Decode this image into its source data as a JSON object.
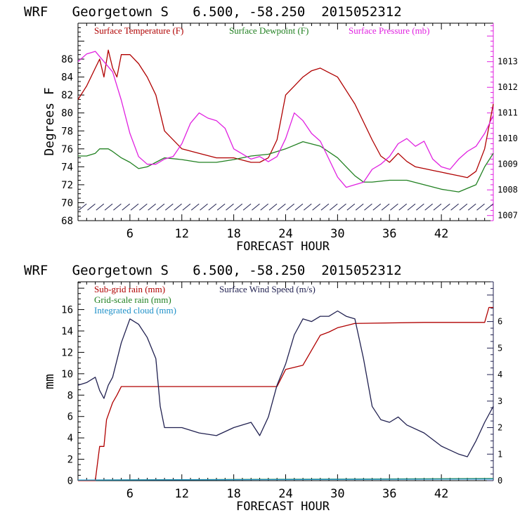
{
  "chart_data": [
    {
      "type": "line",
      "title": "WRF   Georgetown S   6.500, -58.250  2015052312",
      "xlabel": "FORECAST HOUR",
      "ylabel": "Degrees F",
      "y2label": "",
      "xlim": [
        0,
        48
      ],
      "ylim": [
        68,
        90
      ],
      "y2lim": [
        1006.8,
        1014.5
      ],
      "xticks": [
        6,
        12,
        18,
        24,
        30,
        36,
        42
      ],
      "yticks": [
        68,
        70,
        72,
        74,
        76,
        78,
        80,
        82,
        84,
        86
      ],
      "y2ticks": [
        1007,
        1008,
        1009,
        1010,
        1011,
        1012,
        1013
      ],
      "grid": false,
      "legend_position": "top",
      "colors": {
        "temperature": "#b00000",
        "dewpoint": "#208020",
        "pressure": "#e020e0",
        "wind": "#202050"
      },
      "series": [
        {
          "name": "Surface Temperature (F)",
          "axis": "left",
          "color": "#b00000",
          "x": [
            0,
            1,
            2,
            2.5,
            3,
            3.5,
            4,
            4.5,
            5,
            5.5,
            6,
            7,
            8,
            9,
            10,
            12,
            14,
            16,
            18,
            20,
            21,
            22,
            23,
            24,
            25,
            26,
            27,
            28,
            29,
            30,
            31,
            32,
            33,
            34,
            35,
            36,
            37,
            38,
            39,
            40,
            41,
            42,
            43,
            44,
            45,
            46,
            47,
            48
          ],
          "y": [
            81.5,
            83,
            85,
            86,
            84,
            87,
            85,
            84,
            86.5,
            86.5,
            86.5,
            85.5,
            84,
            82,
            78,
            76,
            75.5,
            75,
            75,
            74.5,
            74.5,
            75,
            77,
            82,
            83,
            84,
            84.7,
            85,
            84.5,
            84,
            82.5,
            81,
            79,
            77,
            75.2,
            74.5,
            75.5,
            74.6,
            74,
            73.8,
            73.6,
            73.4,
            73.2,
            73,
            72.8,
            73.5,
            76,
            81
          ]
        },
        {
          "name": "Surface Dewpoint (F)",
          "axis": "left",
          "color": "#208020",
          "x": [
            0,
            1,
            2,
            2.5,
            3,
            3.5,
            4,
            5,
            6,
            7,
            8,
            9,
            10,
            12,
            14,
            16,
            18,
            20,
            22,
            24,
            26,
            28,
            30,
            31,
            32,
            33,
            34,
            36,
            38,
            40,
            42,
            44,
            46,
            47,
            48
          ],
          "y": [
            75.2,
            75.2,
            75.5,
            76,
            76,
            76,
            75.7,
            75,
            74.5,
            73.8,
            74,
            74.5,
            75,
            74.8,
            74.5,
            74.5,
            74.8,
            75.2,
            75.4,
            76,
            76.8,
            76.3,
            75,
            74,
            73,
            72.3,
            72.3,
            72.5,
            72.5,
            72,
            71.5,
            71.2,
            72,
            74,
            75.5
          ]
        },
        {
          "name": "Surface Pressure (mb)",
          "axis": "right",
          "color": "#e020e0",
          "x": [
            0,
            1,
            2,
            3,
            4,
            5,
            6,
            7,
            8,
            9,
            10,
            11,
            12,
            13,
            14,
            15,
            16,
            17,
            18,
            19,
            20,
            21,
            22,
            23,
            24,
            25,
            26,
            27,
            28,
            29,
            30,
            31,
            32,
            33,
            34,
            35,
            36,
            37,
            38,
            39,
            40,
            41,
            42,
            43,
            44,
            45,
            46,
            47,
            48
          ],
          "y": [
            1013,
            1013.3,
            1013.4,
            1013,
            1012.6,
            1011.5,
            1010.2,
            1009.3,
            1009,
            1009,
            1009.2,
            1009.3,
            1009.8,
            1010.6,
            1011,
            1010.8,
            1010.7,
            1010.4,
            1009.6,
            1009.4,
            1009.2,
            1009.3,
            1009.1,
            1009.3,
            1010,
            1011,
            1010.7,
            1010.2,
            1009.9,
            1009.2,
            1008.5,
            1008.1,
            1008.2,
            1008.3,
            1008.8,
            1009,
            1009.3,
            1009.8,
            1010,
            1009.7,
            1009.9,
            1009.2,
            1008.9,
            1008.8,
            1009.2,
            1009.5,
            1009.7,
            1010.2,
            1010.9
          ]
        }
      ],
      "wind_barbs_y": 69.4
    },
    {
      "type": "line",
      "title": "WRF   Georgetown S   6.500, -58.250  2015052312",
      "xlabel": "FORECAST HOUR",
      "ylabel": "mm",
      "xlim": [
        0,
        48
      ],
      "ylim": [
        0,
        18.6
      ],
      "y2lim": [
        0,
        7.5
      ],
      "xticks": [
        6,
        12,
        18,
        24,
        30,
        36,
        42
      ],
      "yticks": [
        0,
        2,
        4,
        6,
        8,
        10,
        12,
        14,
        16
      ],
      "y2ticks": [
        0,
        1,
        2,
        3,
        4,
        5,
        6
      ],
      "grid": false,
      "legend_position": "top-left",
      "series": [
        {
          "name": "Sub-grid rain (mm)",
          "axis": "left",
          "color": "#b00000",
          "x": [
            0,
            1,
            2,
            2.5,
            2.7,
            3,
            3.3,
            4,
            4.5,
            5,
            20,
            21,
            22,
            23,
            24,
            25,
            26,
            27,
            28,
            29,
            30,
            31,
            32,
            40,
            47,
            47.5,
            48
          ],
          "y": [
            0,
            0,
            0,
            3.2,
            3.2,
            3.2,
            5.7,
            7.3,
            8,
            8.8,
            8.8,
            8.8,
            8.8,
            8.8,
            10.4,
            10.6,
            10.8,
            12.2,
            13.6,
            13.9,
            14.3,
            14.5,
            14.7,
            14.8,
            14.8,
            16.2,
            16.2
          ]
        },
        {
          "name": "Grid-scale rain (mm)",
          "axis": "left",
          "color": "#208020",
          "x": [
            0,
            48
          ],
          "y": [
            0.05,
            0.2
          ]
        },
        {
          "name": "Integrated cloud (mm)",
          "axis": "left",
          "color": "#1e90c8",
          "x": [
            0,
            48
          ],
          "y": [
            0.05,
            0.15
          ]
        },
        {
          "name": "Surface Wind Speed (m/s)",
          "axis": "right",
          "color": "#202050",
          "x": [
            0,
            1,
            2,
            2.5,
            3,
            3.5,
            4,
            5,
            6,
            7,
            8,
            9,
            9.5,
            10,
            12,
            14,
            16,
            18,
            20,
            21,
            22,
            23,
            24,
            25,
            26,
            27,
            28,
            29,
            30,
            31,
            32,
            33,
            34,
            35,
            36,
            37,
            38,
            40,
            42,
            44,
            45,
            46,
            47,
            48
          ],
          "y": [
            3.6,
            3.7,
            3.9,
            3.4,
            3.1,
            3.6,
            3.9,
            5.2,
            6.1,
            5.9,
            5.4,
            4.6,
            2.8,
            2,
            2,
            1.8,
            1.7,
            2,
            2.2,
            1.7,
            2.4,
            3.6,
            4.4,
            5.5,
            6.1,
            6,
            6.2,
            6.2,
            6.4,
            6.2,
            6.1,
            4.6,
            2.8,
            2.3,
            2.2,
            2.4,
            2.1,
            1.8,
            1.3,
            1,
            0.9,
            1.5,
            2.2,
            2.8
          ]
        }
      ]
    }
  ]
}
